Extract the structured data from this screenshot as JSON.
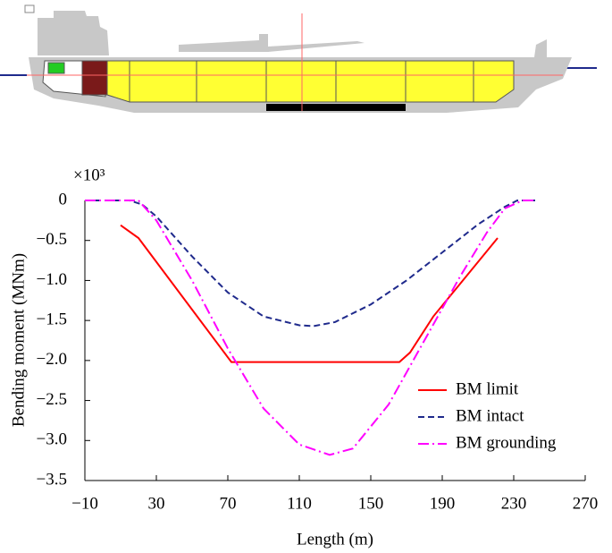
{
  "chart_data": {
    "type": "line",
    "multiplier": "×10³",
    "xlabel": "Length (m)",
    "ylabel": "Bending moment (MNm)",
    "xlim": [
      -10,
      270
    ],
    "xticks": [
      {
        "value": -10,
        "label": "−10"
      },
      30,
      70,
      110,
      150,
      190,
      230,
      270
    ],
    "ylim": [
      -3.5,
      0
    ],
    "yticks": [
      0,
      {
        "value": -0.5,
        "label": "−0.5"
      },
      {
        "value": -1.0,
        "label": "−1.0"
      },
      {
        "value": -1.5,
        "label": "−1.5"
      },
      {
        "value": -2.0,
        "label": "−2.0"
      },
      {
        "value": -2.5,
        "label": "−2.5"
      },
      {
        "value": -3.0,
        "label": "−3.0"
      },
      {
        "value": -3.5,
        "label": "−3.5"
      }
    ],
    "legend": "lower right",
    "series": [
      {
        "name": "BM limit",
        "color": "#ff0000",
        "style": "solid",
        "x": [
          10,
          20,
          72,
          166,
          172,
          185,
          221
        ],
        "values": [
          -0.31,
          -0.47,
          -2.02,
          -2.02,
          -1.9,
          -1.45,
          -0.47
        ]
      },
      {
        "name": "BM intact",
        "color": "#1f2a8c",
        "style": "dashed",
        "x": [
          -10,
          15,
          22,
          30,
          50,
          70,
          90,
          110,
          118,
          130,
          150,
          170,
          190,
          210,
          225,
          232,
          242
        ],
        "values": [
          0,
          0,
          -0.05,
          -0.2,
          -0.7,
          -1.15,
          -1.45,
          -1.56,
          -1.57,
          -1.52,
          -1.3,
          -1.0,
          -0.65,
          -0.3,
          -0.08,
          0,
          0
        ]
      },
      {
        "name": "BM grounding",
        "color": "#ff00ff",
        "style": "dashdot",
        "x": [
          -10,
          20,
          30,
          50,
          70,
          90,
          110,
          127,
          140,
          160,
          180,
          200,
          215,
          225,
          235,
          242
        ],
        "values": [
          0,
          0,
          -0.25,
          -1.0,
          -1.85,
          -2.6,
          -3.05,
          -3.18,
          -3.1,
          -2.55,
          -1.75,
          -0.95,
          -0.4,
          -0.1,
          0,
          0
        ]
      }
    ]
  }
}
